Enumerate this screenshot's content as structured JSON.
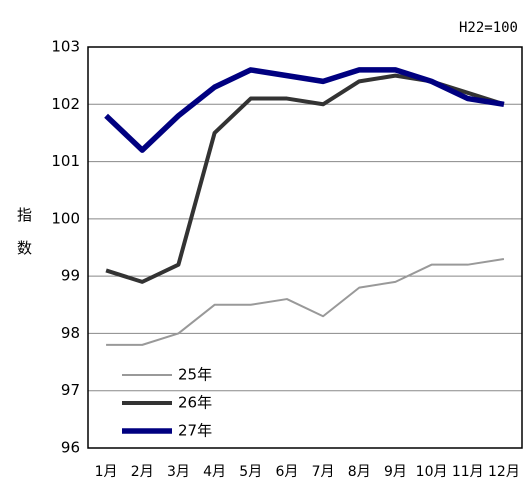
{
  "chart_data": {
    "type": "line",
    "annotation": "H22=100",
    "y_label": "指数",
    "categories": [
      "1月",
      "2月",
      "3月",
      "4月",
      "5月",
      "6月",
      "7月",
      "8月",
      "9月",
      "10月",
      "11月",
      "12月"
    ],
    "series": [
      {
        "name": "25年",
        "color": "#999999",
        "values": [
          97.8,
          97.8,
          98.0,
          98.5,
          98.5,
          98.6,
          98.3,
          98.8,
          98.9,
          99.2,
          99.2,
          99.3
        ]
      },
      {
        "name": "26年",
        "color": "#333333",
        "values": [
          99.1,
          98.9,
          99.2,
          101.5,
          102.1,
          102.1,
          102.0,
          102.4,
          102.5,
          102.4,
          102.2,
          102.0
        ]
      },
      {
        "name": "27年",
        "color": "#000080",
        "values": [
          101.8,
          101.2,
          101.8,
          102.3,
          102.6,
          102.5,
          102.4,
          102.6,
          102.6,
          102.4,
          102.1,
          102.0
        ]
      }
    ],
    "ylim": [
      96,
      103
    ],
    "yticks": [
      96,
      97,
      98,
      99,
      100,
      101,
      102,
      103
    ],
    "grid": true
  }
}
